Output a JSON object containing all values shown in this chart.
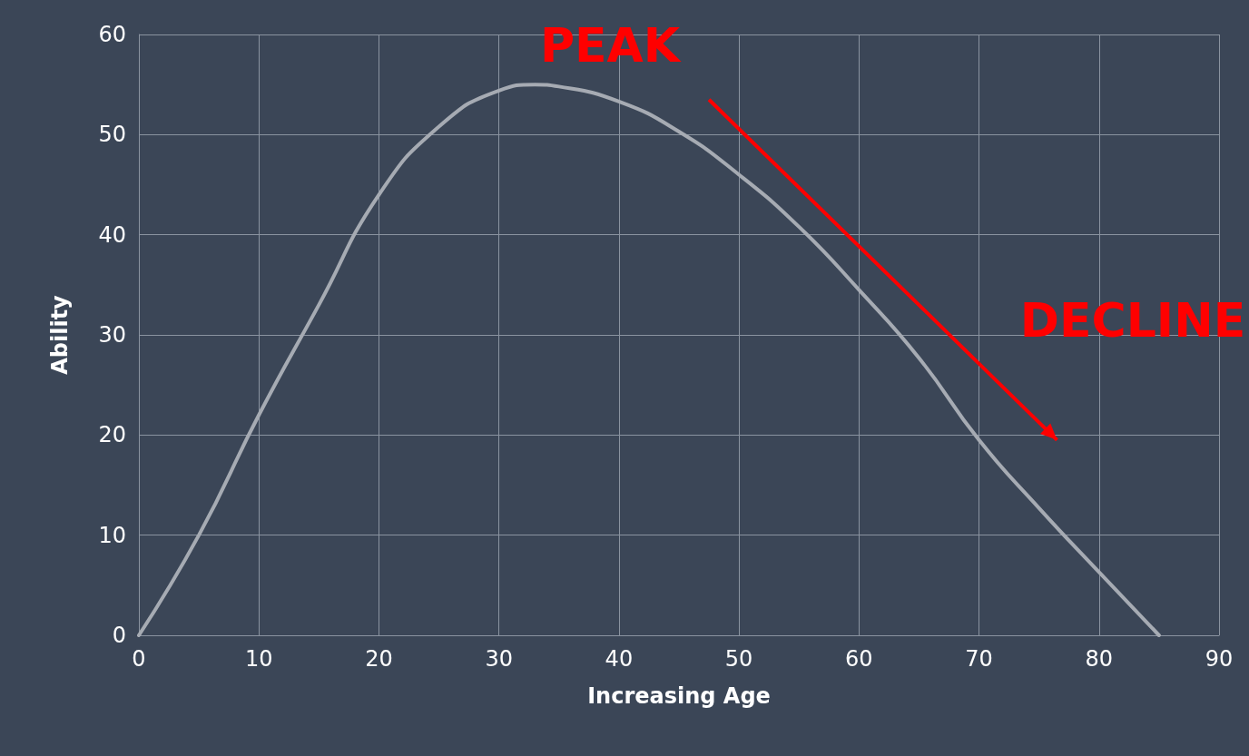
{
  "chart_data": {
    "type": "line",
    "xlabel": "Increasing Age",
    "ylabel": "Ability",
    "x": [
      0,
      5,
      10,
      15,
      20,
      25,
      30,
      33,
      35,
      40,
      45,
      50,
      55,
      60,
      65,
      70,
      75,
      80,
      85
    ],
    "series": [
      {
        "color": "#a6abb3",
        "values": [
          0,
          10,
          22,
          33,
          44,
          50.8,
          54.4,
          55,
          54.8,
          53.3,
          50.3,
          46,
          40.8,
          34.5,
          27.7,
          19.5,
          12.7,
          6.3,
          0
        ]
      }
    ],
    "xlim": [
      0,
      90
    ],
    "xticks": [
      0,
      10,
      20,
      30,
      40,
      50,
      60,
      70,
      80,
      90
    ],
    "ylim": [
      0,
      60
    ],
    "yticks": [
      0,
      10,
      20,
      30,
      40,
      50,
      60
    ],
    "grid": true,
    "marker": "none",
    "line_style": "solid",
    "annotations": [
      "PEAK",
      "DECLINE"
    ]
  }
}
